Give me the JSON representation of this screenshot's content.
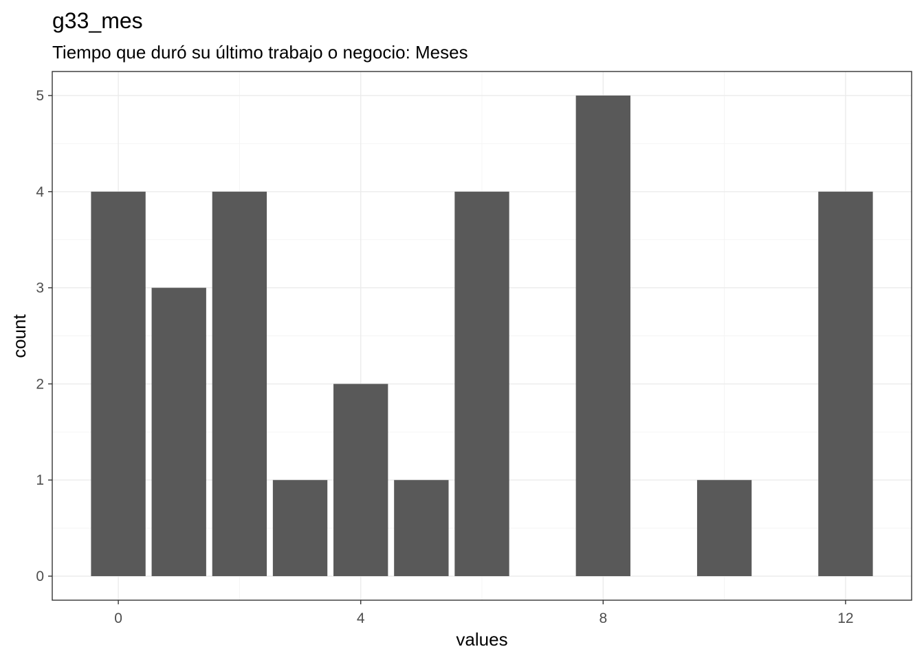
{
  "chart_data": {
    "type": "bar",
    "title": "g33_mes",
    "subtitle": "Tiempo que duró su último trabajo o negocio: Meses",
    "xlabel": "values",
    "ylabel": "count",
    "x": [
      0,
      1,
      2,
      3,
      4,
      5,
      6,
      8,
      10,
      12
    ],
    "values": [
      4,
      3,
      4,
      1,
      2,
      1,
      4,
      5,
      1,
      4
    ],
    "xlim": [
      -1.09,
      13.09
    ],
    "ylim": [
      -0.25,
      5.25
    ],
    "x_ticks": [
      0,
      4,
      8,
      12
    ],
    "x_tick_labels": [
      "0",
      "4",
      "8",
      "12"
    ],
    "y_ticks": [
      0,
      1,
      2,
      3,
      4,
      5
    ],
    "y_tick_labels": [
      "0",
      "1",
      "2",
      "3",
      "4",
      "5"
    ],
    "bar_width": 0.9,
    "grid": true,
    "colors": {
      "bar": "#595959",
      "panel_border": "#333333",
      "grid_major": "#ebebeb",
      "grid_minor": "#f4f4f4"
    }
  }
}
